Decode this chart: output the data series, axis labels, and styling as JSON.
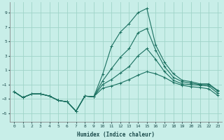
{
  "xlabel": "Humidex (Indice chaleur)",
  "background_color": "#c8eee8",
  "grid_color": "#a0d4c8",
  "line_color": "#1a7060",
  "xlim": [
    -0.5,
    23.5
  ],
  "ylim": [
    -6.2,
    10.5
  ],
  "xticks": [
    0,
    1,
    2,
    3,
    4,
    5,
    6,
    7,
    8,
    9,
    10,
    11,
    12,
    13,
    14,
    15,
    16,
    17,
    18,
    19,
    20,
    21,
    22,
    23
  ],
  "yticks": [
    -5,
    -3,
    -1,
    1,
    3,
    5,
    7,
    9
  ],
  "series": [
    [
      -2.0,
      -2.8,
      -2.3,
      -2.3,
      -2.6,
      -3.2,
      -3.4,
      -4.7,
      -2.6,
      -2.7,
      0.4,
      4.3,
      6.3,
      7.5,
      9.0,
      9.6,
      4.5,
      2.1,
      0.5,
      -0.4,
      -0.6,
      -0.9,
      -0.9,
      -1.8
    ],
    [
      -2.0,
      -2.8,
      -2.3,
      -2.3,
      -2.6,
      -3.2,
      -3.4,
      -4.7,
      -2.6,
      -2.7,
      -0.5,
      1.2,
      2.8,
      4.0,
      6.2,
      6.8,
      3.8,
      1.5,
      0.0,
      -0.6,
      -0.8,
      -1.0,
      -1.0,
      -1.9
    ],
    [
      -2.0,
      -2.8,
      -2.3,
      -2.3,
      -2.6,
      -3.2,
      -3.4,
      -4.7,
      -2.6,
      -2.7,
      -1.0,
      -0.3,
      0.6,
      1.5,
      3.0,
      4.0,
      2.5,
      0.8,
      -0.4,
      -0.9,
      -1.0,
      -1.1,
      -1.2,
      -2.2
    ],
    [
      -2.0,
      -2.8,
      -2.3,
      -2.3,
      -2.6,
      -3.2,
      -3.4,
      -4.7,
      -2.6,
      -2.7,
      -1.5,
      -1.2,
      -0.8,
      -0.3,
      0.3,
      0.8,
      0.5,
      0.0,
      -0.7,
      -1.1,
      -1.3,
      -1.4,
      -1.6,
      -2.5
    ]
  ]
}
